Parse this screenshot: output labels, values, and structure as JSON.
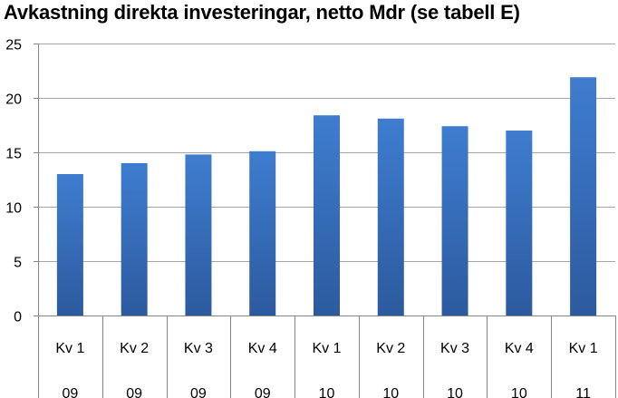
{
  "chart_data": {
    "type": "bar",
    "title": "Avkastning direkta investeringar, netto Mdr (se tabell E)",
    "categories": [
      {
        "quarter": "Kv 1",
        "year": "09"
      },
      {
        "quarter": "Kv 2",
        "year": "09"
      },
      {
        "quarter": "Kv 3",
        "year": "09"
      },
      {
        "quarter": "Kv 4",
        "year": "09"
      },
      {
        "quarter": "Kv 1",
        "year": "10"
      },
      {
        "quarter": "Kv 2",
        "year": "10"
      },
      {
        "quarter": "Kv 3",
        "year": "10"
      },
      {
        "quarter": "Kv 4",
        "year": "10"
      },
      {
        "quarter": "Kv 1",
        "year": "11"
      }
    ],
    "values": [
      13.0,
      14.0,
      14.8,
      15.1,
      18.4,
      18.1,
      17.4,
      17.0,
      21.9
    ],
    "ylim": [
      0,
      25
    ],
    "yticks": [
      0,
      5,
      10,
      15,
      20,
      25
    ],
    "grid": true,
    "bar_color_top": "#3F7DD0",
    "bar_color_bottom": "#2C5A9E",
    "grid_color": "#A6A6A6"
  }
}
